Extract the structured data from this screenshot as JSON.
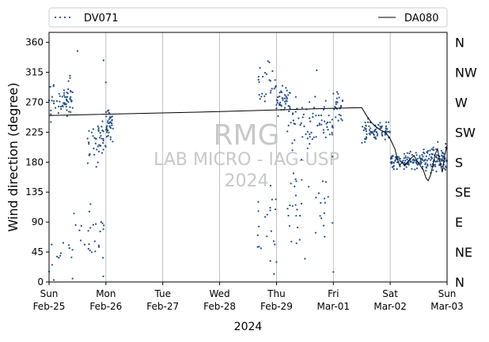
{
  "chart_data": {
    "type": "scatter",
    "title": "",
    "xlabel": "2024",
    "ylabel": "Wind direction (degree)",
    "xlim": [
      "2024-02-25T00:00",
      "2024-03-03T00:00"
    ],
    "ylim": [
      0,
      375
    ],
    "grid": "vertical lines at each day",
    "legend": {
      "placement": "top, above plot",
      "entries": [
        {
          "label": "DV071",
          "style": "dotted markers",
          "color": "#1f4e8c"
        },
        {
          "label": "DA080",
          "style": "solid line",
          "color": "#000000"
        }
      ]
    },
    "yticks": [
      "0",
      "45",
      "90",
      "135",
      "180",
      "225",
      "270",
      "315",
      "360"
    ],
    "compass_labels": [
      "N",
      "NE",
      "E",
      "SE",
      "S",
      "SW",
      "W",
      "NW",
      "N"
    ],
    "xticks": [
      {
        "day": "Sun",
        "date": "Feb-25"
      },
      {
        "day": "Mon",
        "date": "Feb-26"
      },
      {
        "day": "Tue",
        "date": "Feb-27"
      },
      {
        "day": "Wed",
        "date": "Feb-28"
      },
      {
        "day": "Thu",
        "date": "Feb-29"
      },
      {
        "day": "Fri",
        "date": "Mar-01"
      },
      {
        "day": "Sat",
        "date": "Mar-02"
      },
      {
        "day": "Sun",
        "date": "Mar-03"
      }
    ],
    "watermark": [
      "RMG",
      "LAB MICRO - IAG-USP",
      "2024"
    ],
    "colors": {
      "scatter": "#1f4e8c",
      "line": "#000000",
      "grid": "#b0b0b0",
      "watermark": "#c8c8c8"
    },
    "series": [
      {
        "name": "DA080",
        "type": "line",
        "points": [
          [
            "2024-02-25T00:00",
            250
          ],
          [
            "2024-02-28T00:00",
            256
          ],
          [
            "2024-03-01T00:00",
            261
          ],
          [
            "2024-03-01T12:00",
            262
          ],
          [
            "2024-03-01T14:00",
            250
          ],
          [
            "2024-03-01T16:00",
            240
          ],
          [
            "2024-03-01T18:00",
            233
          ],
          [
            "2024-03-01T20:00",
            228
          ],
          [
            "2024-03-01T22:00",
            225
          ],
          [
            "2024-03-02T00:00",
            215
          ],
          [
            "2024-03-02T02:00",
            200
          ],
          [
            "2024-03-02T03:00",
            185
          ],
          [
            "2024-03-02T04:00",
            175
          ],
          [
            "2024-03-02T05:00",
            180
          ],
          [
            "2024-03-02T06:00",
            175
          ],
          [
            "2024-03-02T08:00",
            183
          ],
          [
            "2024-03-02T10:00",
            190
          ],
          [
            "2024-03-02T12:00",
            178
          ],
          [
            "2024-03-02T14:00",
            168
          ],
          [
            "2024-03-02T15:00",
            157
          ],
          [
            "2024-03-02T16:00",
            152
          ],
          [
            "2024-03-02T17:00",
            160
          ],
          [
            "2024-03-02T18:00",
            175
          ],
          [
            "2024-03-02T19:00",
            192
          ],
          [
            "2024-03-02T20:00",
            200
          ],
          [
            "2024-03-02T21:00",
            180
          ],
          [
            "2024-03-02T22:00",
            165
          ],
          [
            "2024-03-02T23:00",
            190
          ],
          [
            "2024-03-03T00:00",
            205
          ]
        ]
      },
      {
        "name": "DV071",
        "type": "scatter",
        "clusters": [
          {
            "start": "2024-02-25T00:00",
            "end": "2024-02-25T10:00",
            "center": 275,
            "spread": 40,
            "count": 60
          },
          {
            "start": "2024-02-25T00:00",
            "end": "2024-02-26T00:00",
            "center": 60,
            "spread": 70,
            "count": 40
          },
          {
            "start": "2024-02-25T16:00",
            "end": "2024-02-26T00:00",
            "center": 210,
            "spread": 45,
            "count": 45
          },
          {
            "start": "2024-02-26T00:00",
            "end": "2024-02-26T03:00",
            "center": 235,
            "spread": 30,
            "count": 40
          },
          {
            "start": "2024-02-28T16:00",
            "end": "2024-02-29T00:00",
            "center": 300,
            "spread": 40,
            "count": 25
          },
          {
            "start": "2024-02-28T16:00",
            "end": "2024-02-29T00:00",
            "center": 90,
            "spread": 70,
            "count": 20
          },
          {
            "start": "2024-02-29T00:00",
            "end": "2024-02-29T06:00",
            "center": 270,
            "spread": 30,
            "count": 40
          },
          {
            "start": "2024-02-29T04:00",
            "end": "2024-03-01T00:00",
            "center": 240,
            "spread": 50,
            "count": 70
          },
          {
            "start": "2024-02-29T04:00",
            "end": "2024-03-01T00:00",
            "center": 120,
            "spread": 90,
            "count": 40
          },
          {
            "start": "2024-03-01T00:00",
            "end": "2024-03-01T04:00",
            "center": 260,
            "spread": 40,
            "count": 25
          },
          {
            "start": "2024-03-01T12:00",
            "end": "2024-03-02T00:00",
            "center": 225,
            "spread": 25,
            "count": 80
          },
          {
            "start": "2024-03-02T00:00",
            "end": "2024-03-02T14:00",
            "center": 182,
            "spread": 18,
            "count": 110
          },
          {
            "start": "2024-03-02T14:00",
            "end": "2024-03-03T00:00",
            "center": 185,
            "spread": 28,
            "count": 90
          }
        ],
        "highlights": [
          [
            "2024-02-25T12:00",
            347
          ],
          [
            "2024-02-25T23:00",
            333
          ],
          [
            "2024-02-26T00:00",
            300
          ],
          [
            "2024-02-28T21:00",
            330
          ],
          [
            "2024-02-29T17:00",
            318
          ],
          [
            "2024-03-01T00:00",
            283
          ],
          [
            "2024-02-28T23:00",
            12
          ],
          [
            "2024-02-29T00:00",
            30
          ],
          [
            "2024-02-25T02:00",
            3
          ],
          [
            "2024-02-29T12:00",
            35
          ],
          [
            "2024-03-01T00:00",
            15
          ]
        ]
      }
    ]
  }
}
